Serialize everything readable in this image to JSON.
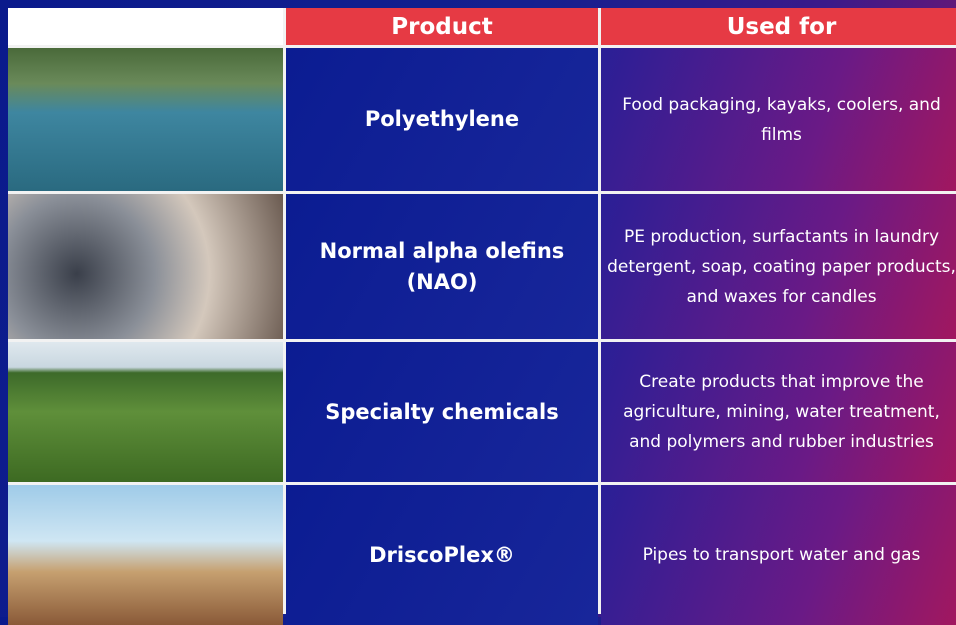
{
  "table": {
    "header": [
      "Product",
      "Used for"
    ],
    "rows": [
      [
        "Polyethylene",
        "Food packaging, kayaks, coolers, and films"
      ],
      [
        "Normal alpha olefins (NAO)",
        "PE production, surfactants in laundry detergent, soap, coating paper products, and waxes for candles"
      ],
      [
        "Specialty chemicals",
        "Create products that improve the agriculture, mining, water treatment, and polymers and rubber industries"
      ],
      [
        "DriscoPlex®",
        "Pipes to transport water and gas"
      ]
    ]
  }
}
